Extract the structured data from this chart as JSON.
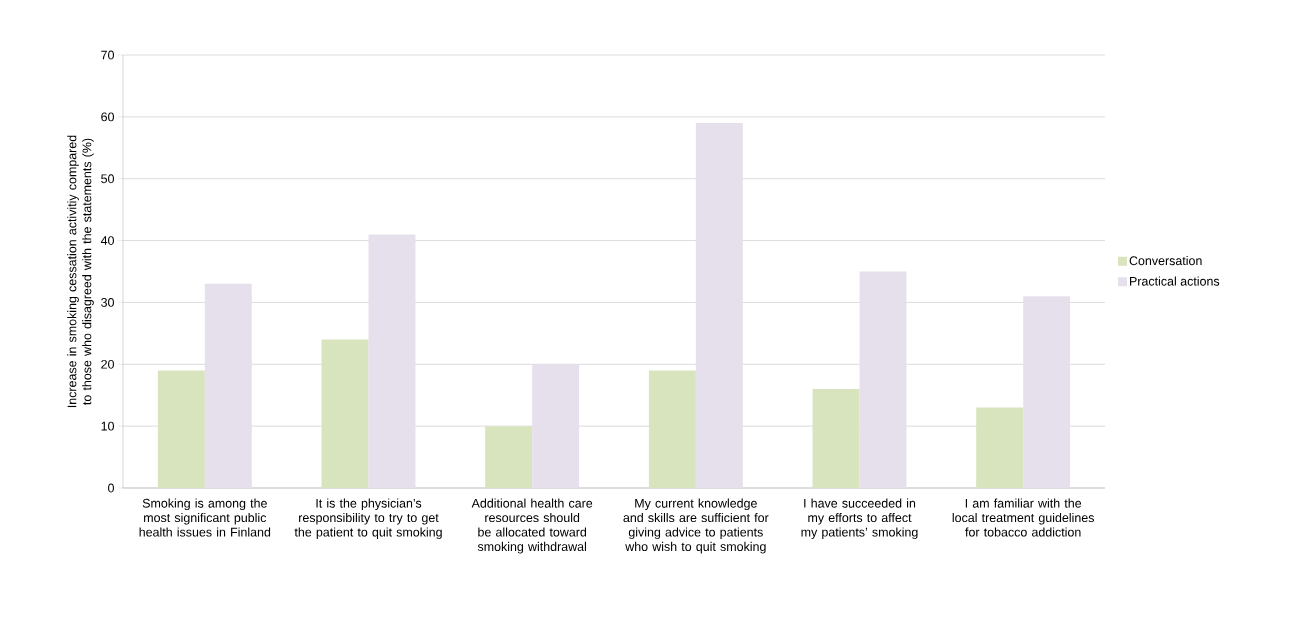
{
  "chart_data": {
    "type": "bar",
    "ylabel": "Increase in smoking cessation activitiy compared to those who disagreed with the statements (%)",
    "categories": [
      "Smoking is among the most significant public health issues in Finland",
      "It is the physician’s responsibility to try to get the patient to quit smoking",
      "Additional health care resources should be allocated toward smoking withdrawal",
      "My current knowledge and skills are sufficient for giving advice to patients who wish to quit smoking",
      "I have succeeded in my efforts to affect my patients’ smoking",
      "I am familiar with the local treatment guidelines for tobacco addiction"
    ],
    "series": [
      {
        "name": "Conversation",
        "color": "#d7e4bd",
        "values": [
          19,
          24,
          10,
          19,
          16,
          13
        ]
      },
      {
        "name": "Practical actions",
        "color": "#e6e0ec",
        "values": [
          33,
          41,
          20,
          59,
          35,
          31
        ]
      }
    ],
    "ylim": [
      0,
      70
    ],
    "yticks": [
      0,
      10,
      20,
      30,
      40,
      50,
      60,
      70
    ],
    "grid": "y",
    "legend": "right"
  }
}
